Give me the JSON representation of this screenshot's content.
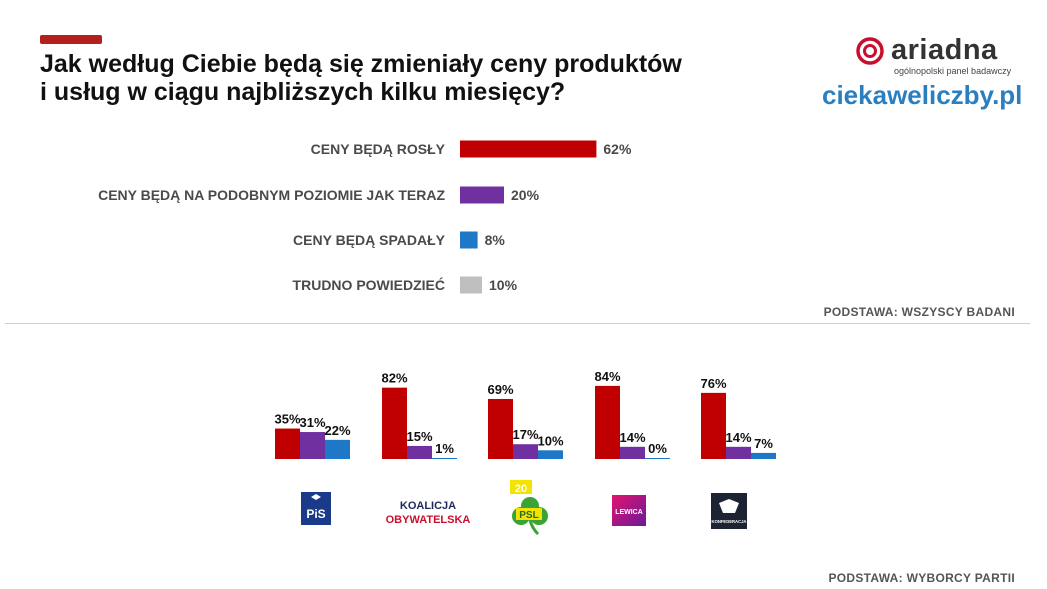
{
  "title_lines": [
    "Jak według Ciebie będą się zmieniały ceny produktów",
    "i usług w ciągu najbliższych kilku miesięcy?"
  ],
  "brand": {
    "name": "ariadna",
    "subtitle": "ogólnopolski panel badawczy",
    "site": "ciekaweliczby.pl"
  },
  "colors": {
    "accent": "#b3201e",
    "rise": "#c00000",
    "same": "#7030a0",
    "fall": "#1f77c8",
    "hard": "#bfbfbf",
    "site": "#2a7fc1"
  },
  "basis_all": "PODSTAWA: WSZYSCY BADANI",
  "basis_voters": "PODSTAWA: WYBORCY PARTII",
  "chart_data": [
    {
      "type": "bar",
      "orientation": "horizontal",
      "categories": [
        "CENY BĘDĄ ROSŁY",
        "CENY BĘDĄ NA PODOBNYM POZIOMIE JAK TERAZ",
        "CENY BĘDĄ SPADAŁY",
        "TRUDNO POWIEDZIEĆ"
      ],
      "values": [
        62,
        20,
        8,
        10
      ],
      "value_labels": [
        "62%",
        "20%",
        "8%",
        "10%"
      ],
      "colors": [
        "#c00000",
        "#7030a0",
        "#1f77c8",
        "#bfbfbf"
      ],
      "xlim": [
        0,
        100
      ],
      "grid": false
    },
    {
      "type": "bar",
      "orientation": "vertical",
      "categories": [
        "PiS",
        "KOALICJA OBYWATELSKA",
        "PSL",
        "LEWICA",
        "KONFEDERACJA"
      ],
      "series": [
        {
          "values": [
            35,
            82,
            69,
            84,
            76
          ],
          "labels": [
            "35%",
            "82%",
            "69%",
            "84%",
            "76%"
          ],
          "color": "#c00000"
        },
        {
          "values": [
            31,
            15,
            17,
            14,
            14
          ],
          "labels": [
            "31%",
            "15%",
            "17%",
            "14%",
            "14%"
          ],
          "color": "#7030a0"
        },
        {
          "values": [
            22,
            1,
            10,
            0,
            7
          ],
          "labels": [
            "22%",
            "1%",
            "10%",
            "0%",
            "7%"
          ],
          "color": "#1f77c8"
        }
      ],
      "ylim": [
        0,
        100
      ],
      "grid": false
    }
  ],
  "party_logos": [
    {
      "icon": "pis-logo",
      "text": "PiS"
    },
    {
      "icon": "ko-logo",
      "line1": "KOALICJA",
      "line2": "OBYWATELSKA"
    },
    {
      "icon": "psl-logo",
      "text": "PSL"
    },
    {
      "icon": "lewica-logo",
      "text": "LEWICA"
    },
    {
      "icon": "konfederacja-logo",
      "text": "KONFEDERACJA"
    }
  ]
}
